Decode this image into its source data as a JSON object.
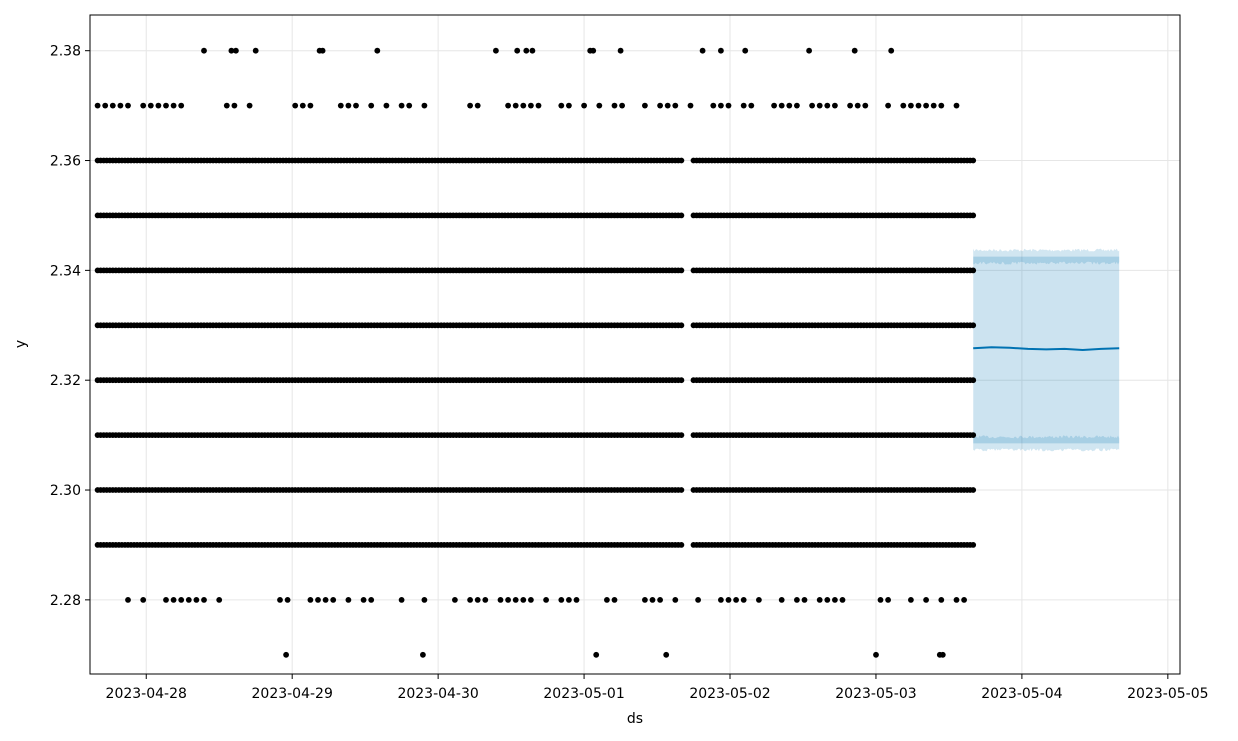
{
  "chart_data": {
    "type": "scatter",
    "title": "",
    "xlabel": "ds",
    "ylabel": "y",
    "grid": true,
    "xlim": [
      "2023-04-27 14:45",
      "2023-05-05 02:00"
    ],
    "ylim": [
      2.2665,
      2.3865
    ],
    "x_ticks": [
      "2023-04-28",
      "2023-04-29",
      "2023-04-30",
      "2023-05-01",
      "2023-05-02",
      "2023-05-03",
      "2023-05-04",
      "2023-05-05"
    ],
    "y_ticks": [
      "2.28",
      "2.30",
      "2.32",
      "2.34",
      "2.36",
      "2.38"
    ],
    "observed": {
      "x_range": [
        "2023-04-27 16:00",
        "2023-05-03 16:00"
      ],
      "gap_near": "2023-05-01 17:00",
      "dense_levels": [
        2.29,
        2.3,
        2.31,
        2.32,
        2.33,
        2.34,
        2.35,
        2.36
      ],
      "sparse_levels": [
        {
          "y": 2.38,
          "x": [
            "2023-04-28 09:30",
            "2023-04-28 14:00",
            "2023-04-28 14:45",
            "2023-04-28 18:00",
            "2023-04-29 04:30",
            "2023-04-29 05:00",
            "2023-04-29 14:00",
            "2023-04-30 09:30",
            "2023-04-30 13:00",
            "2023-04-30 14:30",
            "2023-04-30 15:30",
            "2023-05-01 01:00",
            "2023-05-01 01:30",
            "2023-05-01 06:00",
            "2023-05-01 19:30",
            "2023-05-01 22:30",
            "2023-05-02 02:30",
            "2023-05-02 13:00",
            "2023-05-02 20:30",
            "2023-05-03 02:30"
          ]
        },
        {
          "y": 2.37,
          "x_range": [
            "2023-04-27 16:00",
            "2023-05-03 15:30"
          ],
          "density": 0.55
        },
        {
          "y": 2.28,
          "x_range": [
            "2023-04-27 21:00",
            "2023-05-03 14:30"
          ],
          "density": 0.55
        },
        {
          "y": 2.27,
          "x": [
            "2023-04-28 23:00",
            "2023-04-29 21:30",
            "2023-05-01 02:00",
            "2023-05-01 13:30",
            "2023-05-03 00:00",
            "2023-05-03 10:30",
            "2023-05-03 11:00"
          ]
        }
      ]
    },
    "forecast": {
      "x_range": [
        "2023-05-03 16:00",
        "2023-05-04 16:00"
      ],
      "yhat": [
        [
          "2023-05-03 16:00",
          2.3258
        ],
        [
          "2023-05-03 19:00",
          2.326
        ],
        [
          "2023-05-03 22:00",
          2.3259
        ],
        [
          "2023-05-04 01:00",
          2.3257
        ],
        [
          "2023-05-04 04:00",
          2.3256
        ],
        [
          "2023-05-04 07:00",
          2.3257
        ],
        [
          "2023-05-04 10:00",
          2.3255
        ],
        [
          "2023-05-04 13:00",
          2.3257
        ],
        [
          "2023-05-04 16:00",
          2.3258
        ]
      ],
      "yhat_lower": 2.3085,
      "yhat_upper": 2.3425
    },
    "colors": {
      "points": "#000000",
      "forecast_line": "#0072B2",
      "interval": "#0072B2"
    }
  }
}
